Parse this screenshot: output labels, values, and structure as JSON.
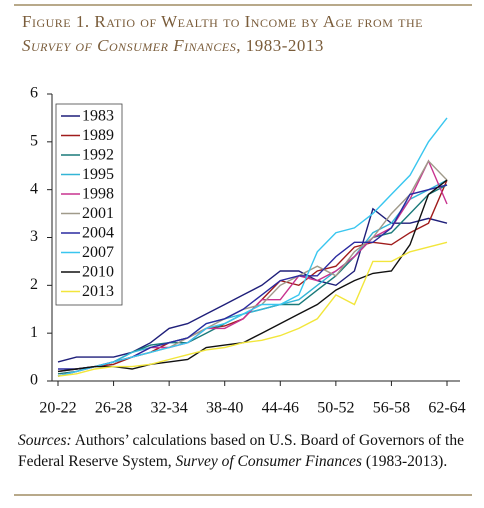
{
  "chart_data": {
    "type": "line",
    "title": "Figure 1. Ratio of Wealth to Income by Age from the",
    "title_source": "Survey of Consumer Finances",
    "title_years": ", 1983-2013",
    "source_label": "Sources:",
    "source_text": " Authors’ calculations based on U.S. Board of Governors of the Federal Reserve System, ",
    "source_survey": "Survey of Consumer Finances",
    "source_years": " (1983-2013).",
    "categories": [
      "20-22",
      null,
      null,
      "26-28",
      null,
      null,
      "32-34",
      null,
      null,
      "38-40",
      null,
      null,
      "44-46",
      null,
      null,
      "50-52",
      null,
      null,
      "56-58",
      null,
      null,
      "62-64"
    ],
    "ylim": [
      0,
      6
    ],
    "yticks": [
      0,
      1,
      2,
      3,
      4,
      5,
      6
    ],
    "series": [
      {
        "name": "1983",
        "color": "#1f1f7a",
        "values": [
          0.4,
          0.5,
          0.5,
          0.5,
          0.6,
          0.8,
          1.1,
          1.2,
          1.4,
          1.6,
          1.8,
          2.0,
          2.3,
          2.3,
          2.1,
          2.0,
          2.3,
          3.6,
          3.3,
          3.3,
          3.4,
          3.3
        ]
      },
      {
        "name": "1989",
        "color": "#a01c1c",
        "values": [
          0.2,
          0.25,
          0.3,
          0.35,
          0.5,
          0.6,
          0.8,
          0.9,
          1.1,
          1.15,
          1.3,
          1.7,
          2.1,
          2.0,
          2.3,
          2.4,
          2.8,
          2.9,
          2.85,
          3.1,
          3.3,
          4.2
        ]
      },
      {
        "name": "1992",
        "color": "#1a7a7a",
        "values": [
          0.15,
          0.2,
          0.3,
          0.4,
          0.6,
          0.75,
          0.8,
          0.8,
          1.0,
          1.2,
          1.4,
          1.5,
          1.6,
          1.6,
          1.9,
          2.2,
          2.6,
          3.0,
          3.1,
          3.5,
          3.9,
          4.1
        ]
      },
      {
        "name": "1995",
        "color": "#33b5d6",
        "values": [
          0.1,
          0.2,
          0.3,
          0.4,
          0.6,
          0.7,
          0.8,
          0.9,
          1.2,
          1.3,
          1.4,
          1.5,
          1.6,
          1.7,
          2.0,
          2.3,
          2.6,
          3.1,
          3.3,
          3.8,
          4.0,
          4.2
        ]
      },
      {
        "name": "1998",
        "color": "#c8338f",
        "values": [
          0.1,
          0.2,
          0.3,
          0.4,
          0.5,
          0.7,
          0.7,
          0.8,
          1.1,
          1.1,
          1.3,
          1.7,
          1.7,
          2.2,
          2.1,
          2.3,
          2.6,
          3.0,
          3.2,
          3.8,
          4.6,
          3.7
        ]
      },
      {
        "name": "2001",
        "color": "#a09a8a",
        "values": [
          0.2,
          0.25,
          0.3,
          0.4,
          0.5,
          0.6,
          0.7,
          0.9,
          1.1,
          1.3,
          1.5,
          1.6,
          2.0,
          2.2,
          2.4,
          2.2,
          2.7,
          3.0,
          3.5,
          3.9,
          4.6,
          4.2
        ]
      },
      {
        "name": "2004",
        "color": "#2a2aa0",
        "values": [
          0.25,
          0.25,
          0.3,
          0.4,
          0.5,
          0.7,
          0.8,
          0.9,
          1.2,
          1.3,
          1.5,
          1.8,
          2.1,
          2.2,
          2.2,
          2.6,
          2.9,
          2.9,
          3.2,
          3.9,
          4.0,
          4.1
        ]
      },
      {
        "name": "2007",
        "color": "#39c6ef",
        "values": [
          0.1,
          0.2,
          0.3,
          0.4,
          0.5,
          0.6,
          0.7,
          0.8,
          1.1,
          1.2,
          1.4,
          1.6,
          1.6,
          1.8,
          2.7,
          3.1,
          3.2,
          3.5,
          3.9,
          4.3,
          5.0,
          5.5
        ]
      },
      {
        "name": "2010",
        "color": "#111111",
        "values": [
          0.2,
          0.25,
          0.3,
          0.3,
          0.25,
          0.35,
          0.4,
          0.45,
          0.7,
          0.75,
          0.8,
          1.0,
          1.2,
          1.4,
          1.6,
          1.9,
          2.1,
          2.25,
          2.3,
          2.85,
          3.9,
          4.2
        ]
      },
      {
        "name": "2013",
        "color": "#f2e63b",
        "values": [
          0.1,
          0.15,
          0.25,
          0.3,
          0.3,
          0.35,
          0.45,
          0.55,
          0.65,
          0.7,
          0.8,
          0.85,
          0.95,
          1.1,
          1.3,
          1.8,
          1.6,
          2.5,
          2.5,
          2.7,
          2.8,
          2.9
        ]
      }
    ]
  }
}
